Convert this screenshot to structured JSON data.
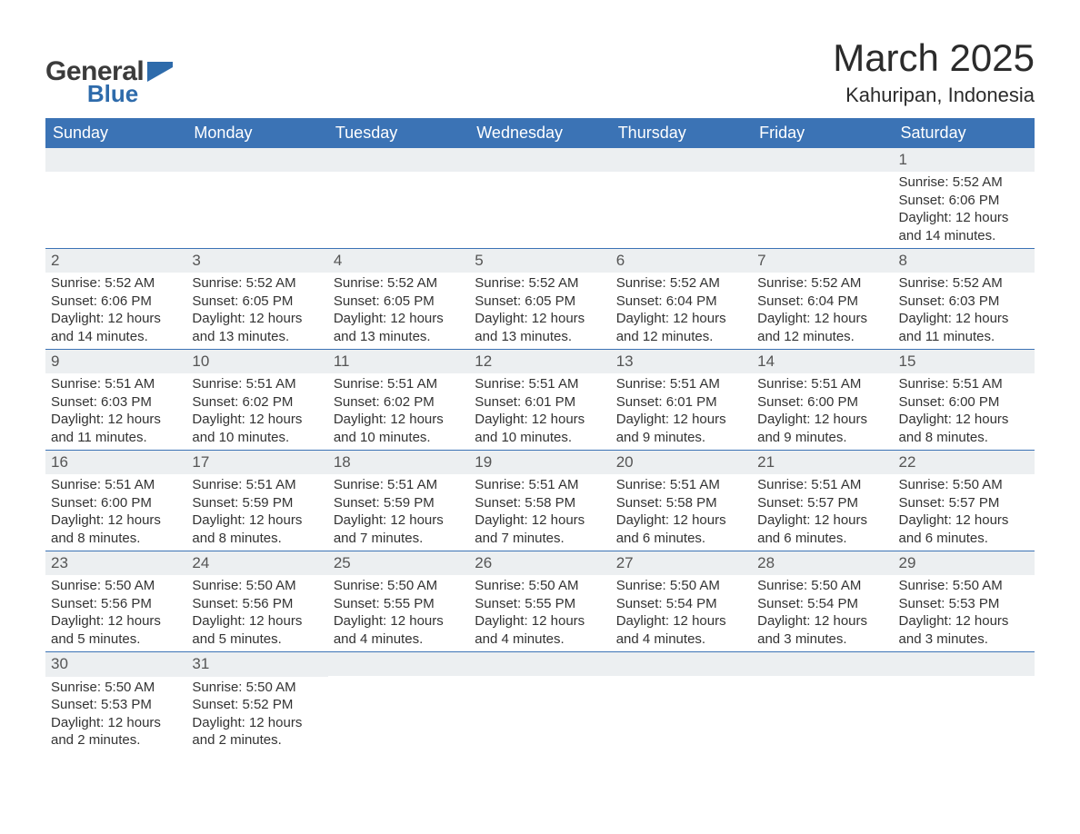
{
  "brand": {
    "general": "General",
    "blue": "Blue",
    "flag_color": "#2e6bab"
  },
  "title": "March 2025",
  "subtitle": "Kahuripan, Indonesia",
  "colors": {
    "header_bg": "#3b73b5",
    "header_text": "#ffffff",
    "daynum_bg": "#eceff1",
    "border": "#3b73b5",
    "text": "#333333",
    "bg": "#ffffff"
  },
  "day_headers": [
    "Sunday",
    "Monday",
    "Tuesday",
    "Wednesday",
    "Thursday",
    "Friday",
    "Saturday"
  ],
  "weeks": [
    [
      {
        "n": "",
        "sunrise": "",
        "sunset": "",
        "daylight": ""
      },
      {
        "n": "",
        "sunrise": "",
        "sunset": "",
        "daylight": ""
      },
      {
        "n": "",
        "sunrise": "",
        "sunset": "",
        "daylight": ""
      },
      {
        "n": "",
        "sunrise": "",
        "sunset": "",
        "daylight": ""
      },
      {
        "n": "",
        "sunrise": "",
        "sunset": "",
        "daylight": ""
      },
      {
        "n": "",
        "sunrise": "",
        "sunset": "",
        "daylight": ""
      },
      {
        "n": "1",
        "sunrise": "Sunrise: 5:52 AM",
        "sunset": "Sunset: 6:06 PM",
        "daylight": "Daylight: 12 hours and 14 minutes."
      }
    ],
    [
      {
        "n": "2",
        "sunrise": "Sunrise: 5:52 AM",
        "sunset": "Sunset: 6:06 PM",
        "daylight": "Daylight: 12 hours and 14 minutes."
      },
      {
        "n": "3",
        "sunrise": "Sunrise: 5:52 AM",
        "sunset": "Sunset: 6:05 PM",
        "daylight": "Daylight: 12 hours and 13 minutes."
      },
      {
        "n": "4",
        "sunrise": "Sunrise: 5:52 AM",
        "sunset": "Sunset: 6:05 PM",
        "daylight": "Daylight: 12 hours and 13 minutes."
      },
      {
        "n": "5",
        "sunrise": "Sunrise: 5:52 AM",
        "sunset": "Sunset: 6:05 PM",
        "daylight": "Daylight: 12 hours and 13 minutes."
      },
      {
        "n": "6",
        "sunrise": "Sunrise: 5:52 AM",
        "sunset": "Sunset: 6:04 PM",
        "daylight": "Daylight: 12 hours and 12 minutes."
      },
      {
        "n": "7",
        "sunrise": "Sunrise: 5:52 AM",
        "sunset": "Sunset: 6:04 PM",
        "daylight": "Daylight: 12 hours and 12 minutes."
      },
      {
        "n": "8",
        "sunrise": "Sunrise: 5:52 AM",
        "sunset": "Sunset: 6:03 PM",
        "daylight": "Daylight: 12 hours and 11 minutes."
      }
    ],
    [
      {
        "n": "9",
        "sunrise": "Sunrise: 5:51 AM",
        "sunset": "Sunset: 6:03 PM",
        "daylight": "Daylight: 12 hours and 11 minutes."
      },
      {
        "n": "10",
        "sunrise": "Sunrise: 5:51 AM",
        "sunset": "Sunset: 6:02 PM",
        "daylight": "Daylight: 12 hours and 10 minutes."
      },
      {
        "n": "11",
        "sunrise": "Sunrise: 5:51 AM",
        "sunset": "Sunset: 6:02 PM",
        "daylight": "Daylight: 12 hours and 10 minutes."
      },
      {
        "n": "12",
        "sunrise": "Sunrise: 5:51 AM",
        "sunset": "Sunset: 6:01 PM",
        "daylight": "Daylight: 12 hours and 10 minutes."
      },
      {
        "n": "13",
        "sunrise": "Sunrise: 5:51 AM",
        "sunset": "Sunset: 6:01 PM",
        "daylight": "Daylight: 12 hours and 9 minutes."
      },
      {
        "n": "14",
        "sunrise": "Sunrise: 5:51 AM",
        "sunset": "Sunset: 6:00 PM",
        "daylight": "Daylight: 12 hours and 9 minutes."
      },
      {
        "n": "15",
        "sunrise": "Sunrise: 5:51 AM",
        "sunset": "Sunset: 6:00 PM",
        "daylight": "Daylight: 12 hours and 8 minutes."
      }
    ],
    [
      {
        "n": "16",
        "sunrise": "Sunrise: 5:51 AM",
        "sunset": "Sunset: 6:00 PM",
        "daylight": "Daylight: 12 hours and 8 minutes."
      },
      {
        "n": "17",
        "sunrise": "Sunrise: 5:51 AM",
        "sunset": "Sunset: 5:59 PM",
        "daylight": "Daylight: 12 hours and 8 minutes."
      },
      {
        "n": "18",
        "sunrise": "Sunrise: 5:51 AM",
        "sunset": "Sunset: 5:59 PM",
        "daylight": "Daylight: 12 hours and 7 minutes."
      },
      {
        "n": "19",
        "sunrise": "Sunrise: 5:51 AM",
        "sunset": "Sunset: 5:58 PM",
        "daylight": "Daylight: 12 hours and 7 minutes."
      },
      {
        "n": "20",
        "sunrise": "Sunrise: 5:51 AM",
        "sunset": "Sunset: 5:58 PM",
        "daylight": "Daylight: 12 hours and 6 minutes."
      },
      {
        "n": "21",
        "sunrise": "Sunrise: 5:51 AM",
        "sunset": "Sunset: 5:57 PM",
        "daylight": "Daylight: 12 hours and 6 minutes."
      },
      {
        "n": "22",
        "sunrise": "Sunrise: 5:50 AM",
        "sunset": "Sunset: 5:57 PM",
        "daylight": "Daylight: 12 hours and 6 minutes."
      }
    ],
    [
      {
        "n": "23",
        "sunrise": "Sunrise: 5:50 AM",
        "sunset": "Sunset: 5:56 PM",
        "daylight": "Daylight: 12 hours and 5 minutes."
      },
      {
        "n": "24",
        "sunrise": "Sunrise: 5:50 AM",
        "sunset": "Sunset: 5:56 PM",
        "daylight": "Daylight: 12 hours and 5 minutes."
      },
      {
        "n": "25",
        "sunrise": "Sunrise: 5:50 AM",
        "sunset": "Sunset: 5:55 PM",
        "daylight": "Daylight: 12 hours and 4 minutes."
      },
      {
        "n": "26",
        "sunrise": "Sunrise: 5:50 AM",
        "sunset": "Sunset: 5:55 PM",
        "daylight": "Daylight: 12 hours and 4 minutes."
      },
      {
        "n": "27",
        "sunrise": "Sunrise: 5:50 AM",
        "sunset": "Sunset: 5:54 PM",
        "daylight": "Daylight: 12 hours and 4 minutes."
      },
      {
        "n": "28",
        "sunrise": "Sunrise: 5:50 AM",
        "sunset": "Sunset: 5:54 PM",
        "daylight": "Daylight: 12 hours and 3 minutes."
      },
      {
        "n": "29",
        "sunrise": "Sunrise: 5:50 AM",
        "sunset": "Sunset: 5:53 PM",
        "daylight": "Daylight: 12 hours and 3 minutes."
      }
    ],
    [
      {
        "n": "30",
        "sunrise": "Sunrise: 5:50 AM",
        "sunset": "Sunset: 5:53 PM",
        "daylight": "Daylight: 12 hours and 2 minutes."
      },
      {
        "n": "31",
        "sunrise": "Sunrise: 5:50 AM",
        "sunset": "Sunset: 5:52 PM",
        "daylight": "Daylight: 12 hours and 2 minutes."
      },
      {
        "n": "",
        "sunrise": "",
        "sunset": "",
        "daylight": ""
      },
      {
        "n": "",
        "sunrise": "",
        "sunset": "",
        "daylight": ""
      },
      {
        "n": "",
        "sunrise": "",
        "sunset": "",
        "daylight": ""
      },
      {
        "n": "",
        "sunrise": "",
        "sunset": "",
        "daylight": ""
      },
      {
        "n": "",
        "sunrise": "",
        "sunset": "",
        "daylight": ""
      }
    ]
  ]
}
